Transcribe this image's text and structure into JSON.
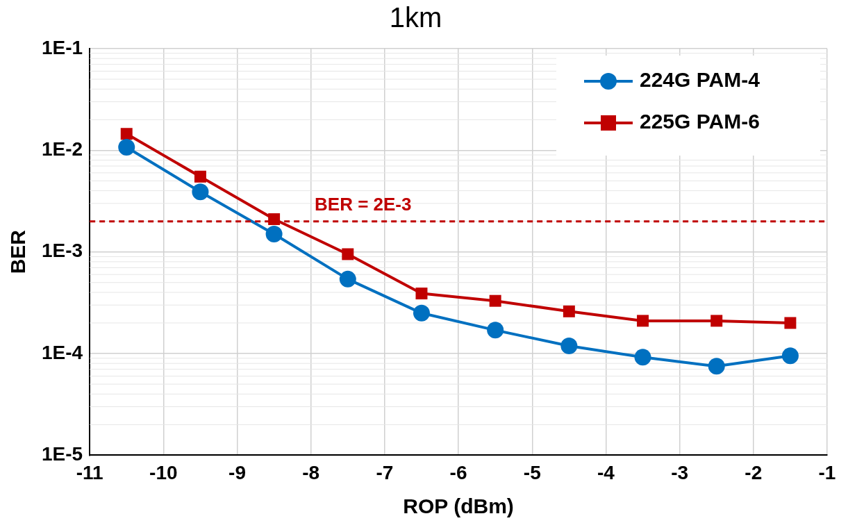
{
  "chart_data": {
    "type": "line",
    "title": "1km",
    "xlabel": "ROP (dBm)",
    "ylabel": "BER",
    "x": [
      -10.5,
      -9.5,
      -8.5,
      -7.5,
      -6.5,
      -5.5,
      -4.5,
      -3.5,
      -2.5,
      -1.5
    ],
    "series": [
      {
        "name": "224G PAM-4",
        "color": "#0070c0",
        "marker": "circle",
        "values": [
          0.0107,
          0.0039,
          0.0015,
          0.00054,
          0.00025,
          0.00017,
          0.000119,
          9.2e-05,
          7.5e-05,
          9.5e-05
        ]
      },
      {
        "name": "225G PAM-6",
        "color": "#c00000",
        "marker": "square",
        "values": [
          0.0145,
          0.0055,
          0.0021,
          0.00095,
          0.00039,
          0.00033,
          0.00026,
          0.00021,
          0.00021,
          0.0002
        ]
      }
    ],
    "xlim": [
      -11,
      -1
    ],
    "xticks": [
      -11,
      -10,
      -9,
      -8,
      -7,
      -6,
      -5,
      -4,
      -3,
      -2,
      -1
    ],
    "ylim": [
      1e-05,
      0.1
    ],
    "yticks": [
      {
        "value": 1e-05,
        "label": "1E-5"
      },
      {
        "value": 0.0001,
        "label": "1E-4"
      },
      {
        "value": 0.001,
        "label": "1E-3"
      },
      {
        "value": 0.01,
        "label": "1E-2"
      },
      {
        "value": 0.1,
        "label": "1E-1"
      }
    ],
    "log": "y",
    "grid": true,
    "legend": "top right",
    "line_style": "solid",
    "ref_lines": [
      {
        "axis": "y",
        "value": 0.002,
        "label": "BER = 2E-3",
        "color": "#c00000",
        "line_style": "dashed"
      }
    ]
  }
}
